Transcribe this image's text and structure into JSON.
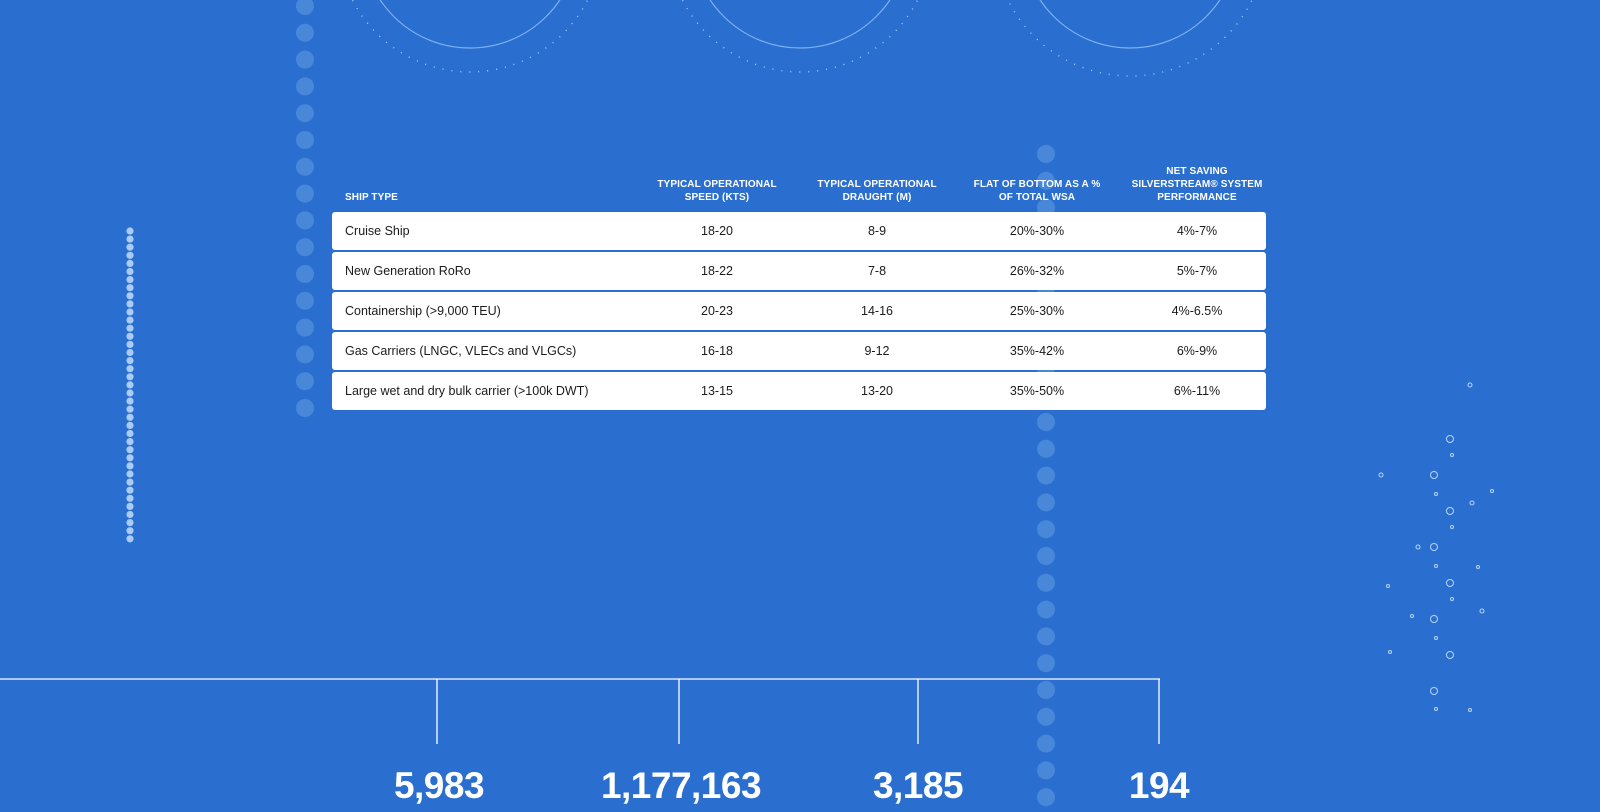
{
  "table": {
    "headers": [
      "SHIP TYPE",
      "TYPICAL OPERATIONAL SPEED (KTS)",
      "TYPICAL OPERATIONAL DRAUGHT (M)",
      "FLAT OF BOTTOM AS A % OF TOTAL WSA",
      "NET SAVING SILVERSTREAM® SYSTEM PERFORMANCE"
    ],
    "rows": [
      [
        "Cruise Ship",
        "18-20",
        "8-9",
        "20%-30%",
        "4%-7%"
      ],
      [
        "New Generation RoRo",
        "18-22",
        "7-8",
        "26%-32%",
        "5%-7%"
      ],
      [
        "Containership (>9,000 TEU)",
        "20-23",
        "14-16",
        "25%-30%",
        "4%-6.5%"
      ],
      [
        "Gas Carriers (LNGC, VLECs and VLGCs)",
        "16-18",
        "9-12",
        "35%-42%",
        "6%-9%"
      ],
      [
        "Large wet and dry bulk carrier (>100k DWT)",
        "13-15",
        "13-20",
        "35%-50%",
        "6%-11%"
      ]
    ]
  },
  "stats": [
    "5,983",
    "1,177,163",
    "3,185",
    "194"
  ],
  "colors": {
    "background": "#2a6fd0",
    "table_row": "#ffffff",
    "text_dark": "#1b1b1b",
    "decor_light": "#8fbaf2"
  }
}
